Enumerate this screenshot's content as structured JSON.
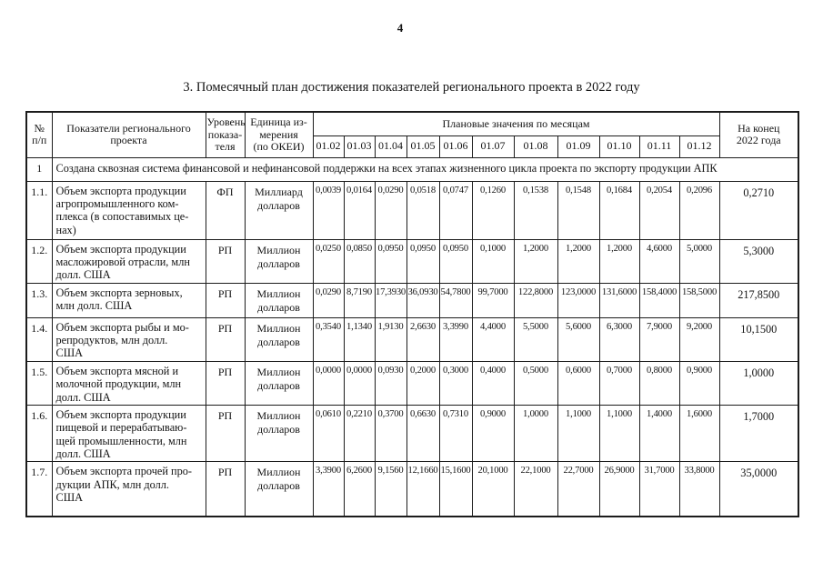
{
  "page": {
    "number": "4",
    "title": "3. Помесячный план достижения показателей регионального проекта в 2022 году"
  },
  "table": {
    "headers": {
      "num": "№\nп/п",
      "indicator": "Показатели регионального\nпроекта",
      "level": "Уровень\nпоказа-\nтеля",
      "unit": "Единица из-\nмерения\n(по ОКЕИ)",
      "plan_group": "Плановые значения по месяцам",
      "months": [
        "01.02",
        "01.03",
        "01.04",
        "01.05",
        "01.06",
        "01.07",
        "01.08",
        "01.09",
        "01.10",
        "01.11",
        "01.12"
      ],
      "year_end": "На конец\n2022 года"
    },
    "section_row": {
      "num": "1",
      "text": "Создана сквозная система финансовой и нефинансовой поддержки на всех этапах жизненного цикла проекта по экспорту продукции АПК"
    },
    "rows": [
      {
        "num": "1.1.",
        "indicator": "Объем экспорта продукции\nагропромышленного ком-\nплекса (в сопоставимых це-\nнах)",
        "level": "ФП",
        "unit": "Миллиард\nдолларов",
        "values": [
          "0,0039",
          "0,0164",
          "0,0290",
          "0,0518",
          "0,0747",
          "0,1260",
          "0,1538",
          "0,1548",
          "0,1684",
          "0,2054",
          "0,2096"
        ],
        "year_end": "0,2710"
      },
      {
        "num": "1.2.",
        "indicator": "Объем экспорта продукции\nмасложировой отрасли, млн\nдолл. США",
        "level": "РП",
        "unit": "Миллион\nдолларов",
        "values": [
          "0,0250",
          "0,0850",
          "0,0950",
          "0,0950",
          "0,0950",
          "0,1000",
          "1,2000",
          "1,2000",
          "1,2000",
          "4,6000",
          "5,0000"
        ],
        "year_end": "5,3000"
      },
      {
        "num": "1.3.",
        "indicator": "Объем экспорта зерновых,\nмлн долл. США",
        "level": "РП",
        "unit": "Миллион\nдолларов",
        "values": [
          "0,0290",
          "8,7190",
          "17,3930",
          "36,0930",
          "54,7800",
          "99,7000",
          "122,8000",
          "123,0000",
          "131,6000",
          "158,4000",
          "158,5000"
        ],
        "year_end": "217,8500"
      },
      {
        "num": "1.4.",
        "indicator": "Объем экспорта рыбы и мо-\nрепродуктов, млн долл.\nСША",
        "level": "РП",
        "unit": "Миллион\nдолларов",
        "values": [
          "0,3540",
          "1,1340",
          "1,9130",
          "2,6630",
          "3,3990",
          "4,4000",
          "5,5000",
          "5,6000",
          "6,3000",
          "7,9000",
          "9,2000"
        ],
        "year_end": "10,1500"
      },
      {
        "num": "1.5.",
        "indicator": "Объем экспорта мясной и\nмолочной продукции, млн\nдолл. США",
        "level": "РП",
        "unit": "Миллион\nдолларов",
        "values": [
          "0,0000",
          "0,0000",
          "0,0930",
          "0,2000",
          "0,3000",
          "0,4000",
          "0,5000",
          "0,6000",
          "0,7000",
          "0,8000",
          "0,9000"
        ],
        "year_end": "1,0000"
      },
      {
        "num": "1.6.",
        "indicator": "Объем экспорта продукции\nпищевой и перерабатываю-\nщей промышленности, млн\nдолл. США",
        "level": "РП",
        "unit": "Миллион\nдолларов",
        "values": [
          "0,0610",
          "0,2210",
          "0,3700",
          "0,6630",
          "0,7310",
          "0,9000",
          "1,0000",
          "1,1000",
          "1,1000",
          "1,4000",
          "1,6000"
        ],
        "year_end": "1,7000"
      },
      {
        "num": "1.7.",
        "indicator": "Объем экспорта прочей про-\nдукции АПК, млн долл.\nСША",
        "level": "РП",
        "unit": "Миллион\nдолларов",
        "values": [
          "3,3900",
          "6,2600",
          "9,1560",
          "12,1660",
          "15,1600",
          "20,1000",
          "22,1000",
          "22,7000",
          "26,9000",
          "31,7000",
          "33,8000"
        ],
        "year_end": "35,0000"
      }
    ]
  }
}
